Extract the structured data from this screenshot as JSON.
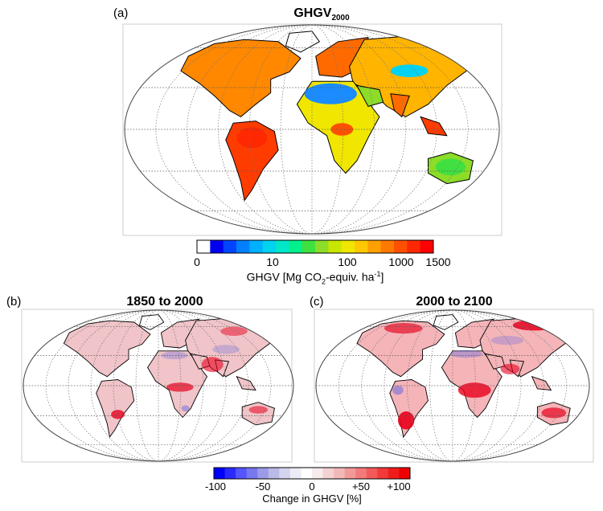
{
  "panel_a": {
    "letter": "(a)",
    "title_main": "GHGV",
    "title_sub": "2000",
    "colorbar": {
      "colors": [
        "#ffffff",
        "#0000f0",
        "#0044ff",
        "#0080ff",
        "#00b0ff",
        "#00d2f0",
        "#00e6c8",
        "#00f08c",
        "#40e040",
        "#8cdc28",
        "#c8e600",
        "#f0e600",
        "#ffc800",
        "#ffa000",
        "#ff7800",
        "#ff5000",
        "#ff2800",
        "#ff0000"
      ],
      "tick_labels": [
        "0",
        "10",
        "100",
        "1000",
        "1500"
      ],
      "label_prefix": "GHGV [Mg CO",
      "label_sub": "2",
      "label_mid": "-equiv. ha",
      "label_sup": "-1",
      "label_suffix": "]"
    }
  },
  "panel_b": {
    "letter": "(b)",
    "title": "1850 to 2000"
  },
  "panel_c": {
    "letter": "(c)",
    "title": "2000 to 2100"
  },
  "change_colorbar": {
    "colors": [
      "#0000ff",
      "#2a2aff",
      "#5555ff",
      "#7777ee",
      "#9a9ae6",
      "#babae8",
      "#d4d4f0",
      "#ececf6",
      "#ffffff",
      "#f6ecec",
      "#f4d2d2",
      "#f2b8b8",
      "#f29a9a",
      "#f27a7a",
      "#f25a5a",
      "#f23a3a",
      "#f01c1c",
      "#ee0000"
    ],
    "tick_labels": [
      "-100",
      "-50",
      "0",
      "+50",
      "+100"
    ],
    "label": "Change in GHGV [%]"
  },
  "map_colors": {
    "panel_a_land": [
      "#ff8800",
      "#ff6a00",
      "#ffb400",
      "#8cdc28",
      "#f0e600",
      "#ff3c00"
    ],
    "panel_a_desert": "#1a8cff",
    "panel_b_land": "#f0c4c8",
    "panel_c_land": "#f4b4b8",
    "increase": "#e8001c",
    "decrease": "#6a6ae0"
  }
}
